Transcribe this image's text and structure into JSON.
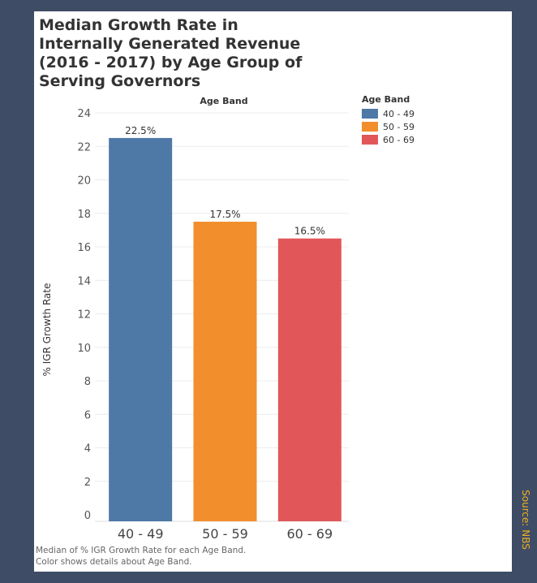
{
  "title_lines": [
    "Median Growth Rate in",
    "Internally Generated Revenue",
    "(2016 - 2017) by Age Group of",
    "Serving Governors"
  ],
  "caption_lines": [
    "Median of % IGR Growth Rate for each Age Band.",
    "Color shows details about Age Band."
  ],
  "source": "Source: NBS",
  "colors": {
    "background": "#3e4d65",
    "panel": "#ffffff",
    "source_text": "#f0b020"
  },
  "chart_data": {
    "type": "bar",
    "column_header": "Age Band",
    "categories": [
      "40 - 49",
      "50 - 59",
      "60 - 69"
    ],
    "values": [
      22.5,
      17.5,
      16.5
    ],
    "value_labels": [
      "22.5%",
      "17.5%",
      "16.5%"
    ],
    "colors": [
      "#4e79a7",
      "#f28e2b",
      "#e15759"
    ],
    "ylabel": "% IGR Growth Rate",
    "ylim": [
      0,
      24
    ],
    "yticks": [
      0,
      2,
      4,
      6,
      8,
      10,
      12,
      14,
      16,
      18,
      20,
      22,
      24
    ],
    "grid": true,
    "legend": {
      "title": "Age Band",
      "position": "right",
      "entries": [
        "40 - 49",
        "50 - 59",
        "60 - 69"
      ]
    }
  }
}
